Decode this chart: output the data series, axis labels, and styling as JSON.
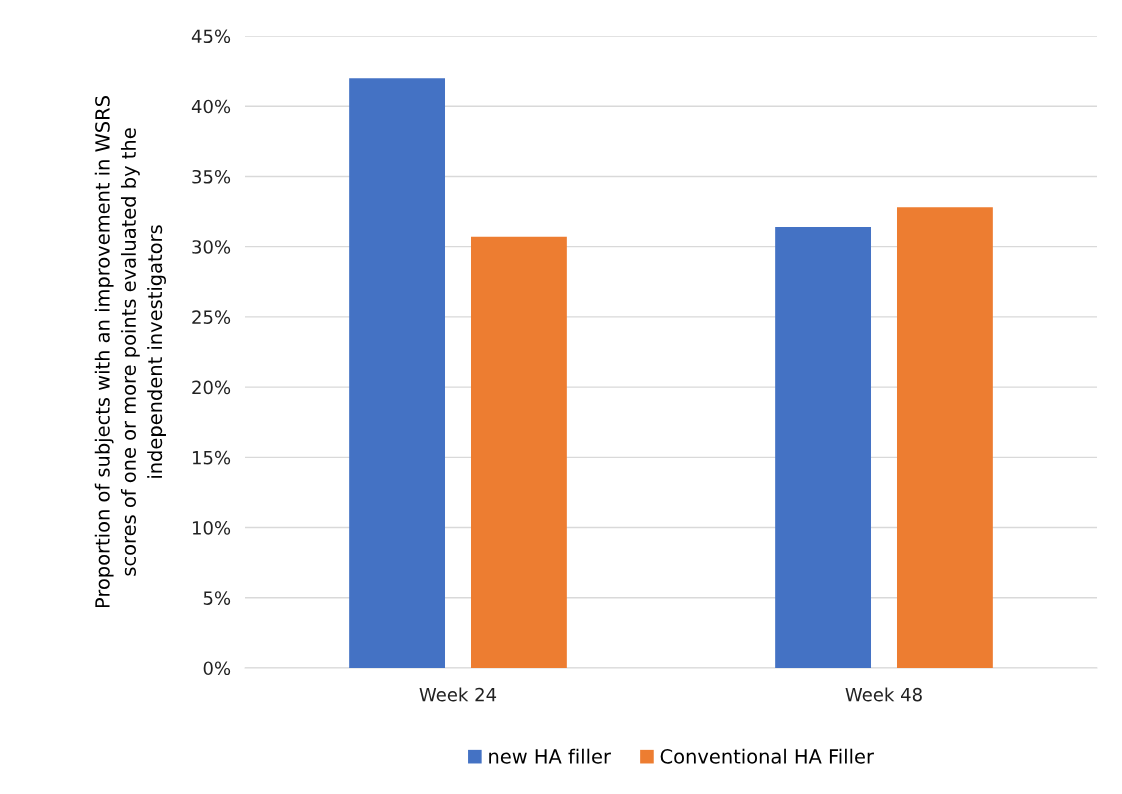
{
  "chart_data": {
    "type": "bar",
    "ylabel": "Proportion of subjects with an improvement in WSRS\nscores of one or more points evaluated by the\nindependent investigators",
    "categories": [
      "Week 24",
      "Week 48"
    ],
    "series": [
      {
        "name": "new HA filler",
        "color": "#4472c4",
        "values": [
          42.0,
          31.4
        ]
      },
      {
        "name": "Conventional HA Filler",
        "color": "#ed7d31",
        "values": [
          30.7,
          32.8
        ]
      }
    ],
    "ylim": [
      0,
      45
    ],
    "yticks": [
      {
        "value": 0,
        "label": "0%"
      },
      {
        "value": 5,
        "label": "5%"
      },
      {
        "value": 10,
        "label": "10%"
      },
      {
        "value": 15,
        "label": "15%"
      },
      {
        "value": 20,
        "label": "20%"
      },
      {
        "value": 25,
        "label": "25%"
      },
      {
        "value": 30,
        "label": "30%"
      },
      {
        "value": 35,
        "label": "35%"
      },
      {
        "value": 40,
        "label": "40%"
      },
      {
        "value": 45,
        "label": "45%"
      }
    ],
    "grid": "y",
    "legend": "bottom"
  }
}
